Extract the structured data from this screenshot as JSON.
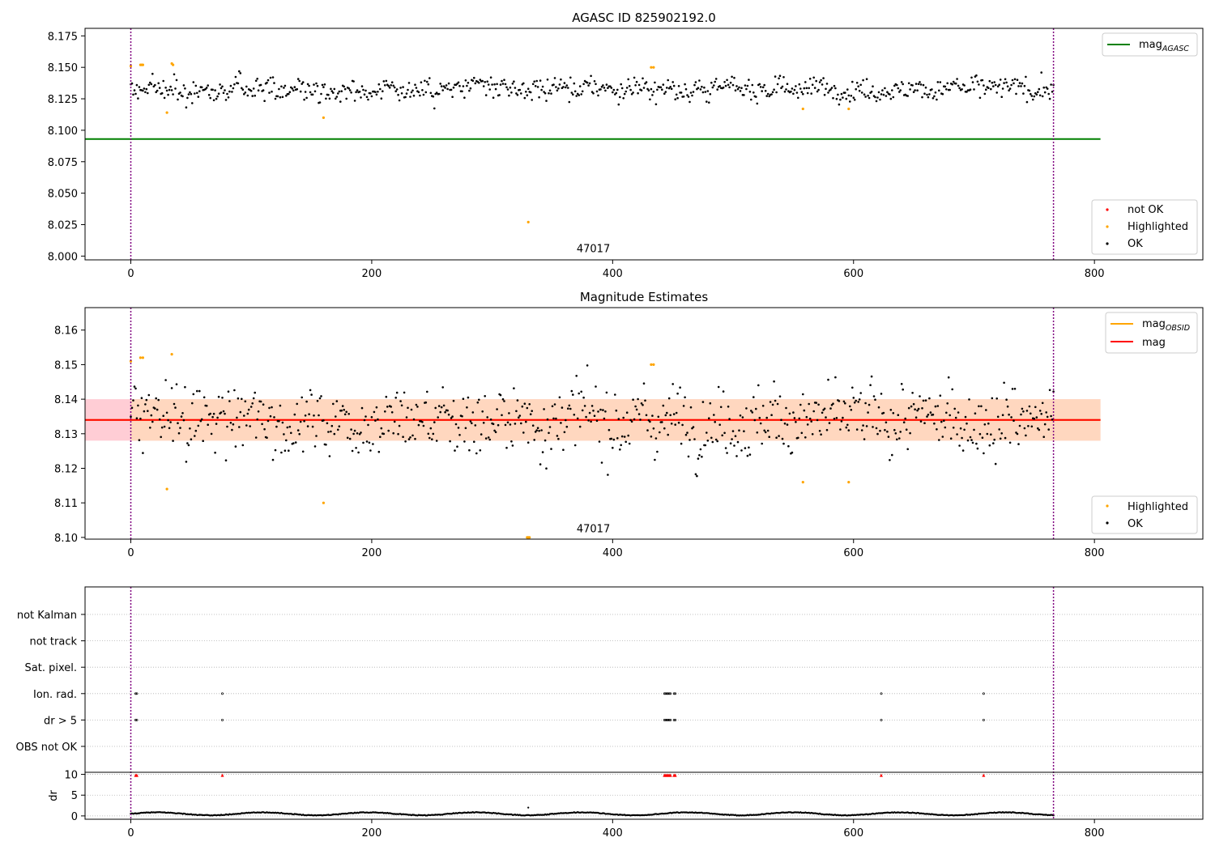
{
  "colors": {
    "agasc_line": "#008000",
    "mag_line": "#ff0000",
    "mag_obsid": "#ffa500",
    "ok": "#000000",
    "highlighted": "#ffa500",
    "not_ok": "#ff0000",
    "obs_line": "#800080",
    "band_outer": "#ffc0cb",
    "band_inner": "#ffdab9",
    "grid": "#b0b0b0"
  },
  "chart_data": [
    {
      "type": "scatter",
      "title": "AGASC ID 825902192.0",
      "xlim": [
        -38,
        890
      ],
      "ylim": [
        7.997,
        8.181
      ],
      "xticks": [
        "0",
        "200",
        "400",
        "600",
        "800"
      ],
      "yticks": [
        "8.000",
        "8.025",
        "8.050",
        "8.075",
        "8.100",
        "8.125",
        "8.150",
        "8.175"
      ],
      "annotation": {
        "text": "47017",
        "x": 384,
        "y": 8.003
      },
      "obs_boundaries": [
        0,
        766
      ],
      "legend_upper": [
        {
          "label": "mag",
          "sub": "AGASC",
          "kind": "line",
          "color": "#008000"
        }
      ],
      "legend_lower": [
        {
          "label": "not OK",
          "kind": "marker",
          "color": "#ff0000"
        },
        {
          "label": "Highlighted",
          "kind": "marker",
          "color": "#ffa500"
        },
        {
          "label": "OK",
          "kind": "marker",
          "color": "#000000"
        }
      ],
      "lines": [
        {
          "name": "mag_AGASC",
          "y": 8.093,
          "x_range": [
            -38,
            805
          ],
          "color": "#008000"
        }
      ],
      "series": [
        {
          "name": "OK",
          "color": "#000000",
          "x_range": [
            0,
            766
          ],
          "center": 8.133,
          "spread": 0.007
        },
        {
          "name": "Highlighted",
          "color": "#ffa500",
          "x": [
            0,
            8,
            9,
            10,
            30,
            34,
            35,
            160,
            330,
            432,
            434,
            558,
            596
          ],
          "y": [
            8.151,
            8.152,
            8.152,
            8.152,
            8.114,
            8.153,
            8.152,
            8.11,
            8.027,
            8.15,
            8.15,
            8.117,
            8.117
          ]
        }
      ]
    },
    {
      "type": "scatter",
      "title": "Magnitude Estimates",
      "xlim": [
        -38,
        890
      ],
      "ylim": [
        8.0995,
        8.1665
      ],
      "xticks": [
        "0",
        "200",
        "400",
        "600",
        "800"
      ],
      "yticks": [
        "8.10",
        "8.11",
        "8.12",
        "8.13",
        "8.14",
        "8.15",
        "8.16"
      ],
      "annotation": {
        "text": "47017",
        "x": 384,
        "y": 8.1015
      },
      "obs_boundaries": [
        0,
        766
      ],
      "legend_upper": [
        {
          "label": "mag",
          "sub": "OBSID",
          "kind": "line",
          "color": "#ffa500"
        },
        {
          "label": "mag",
          "kind": "line",
          "color": "#ff0000"
        }
      ],
      "legend_lower": [
        {
          "label": "Highlighted",
          "kind": "marker",
          "color": "#ffa500"
        },
        {
          "label": "OK",
          "kind": "marker",
          "color": "#000000"
        }
      ],
      "lines": [
        {
          "name": "mag",
          "y": 8.134,
          "x_range": [
            -38,
            805
          ],
          "color": "#ff0000"
        },
        {
          "name": "mag_OBSID",
          "y": 8.134,
          "x_range": [
            -38,
            805
          ],
          "color": "#ffa500"
        }
      ],
      "bands": [
        {
          "y0": 8.128,
          "y1": 8.14,
          "x_range": [
            -38,
            805
          ],
          "color": "#ffc0cb"
        },
        {
          "y0": 8.128,
          "y1": 8.14,
          "x_range": [
            0,
            805
          ],
          "color": "#ffdab9"
        }
      ],
      "series": [
        {
          "name": "OK",
          "color": "#000000",
          "x_range": [
            0,
            766
          ],
          "center": 8.134,
          "spread": 0.0075
        },
        {
          "name": "Highlighted",
          "color": "#ffa500",
          "x": [
            0,
            8,
            10,
            30,
            34,
            160,
            329,
            330,
            331,
            432,
            434,
            558,
            596
          ],
          "y": [
            8.151,
            8.152,
            8.152,
            8.114,
            8.153,
            8.11,
            8.1,
            8.1,
            8.1,
            8.15,
            8.15,
            8.116,
            8.116
          ]
        }
      ]
    },
    {
      "type": "scatter",
      "title": "",
      "xlim": [
        -38,
        890
      ],
      "xticks": [
        "0",
        "200",
        "400",
        "600",
        "800"
      ],
      "obs_boundaries": [
        0,
        766
      ],
      "flag_categories": [
        "not Kalman",
        "not track",
        "Sat. pixel.",
        "Ion. rad.",
        "dr > 5",
        "OBS not OK"
      ],
      "flags": [
        {
          "category": "Ion. rad.",
          "x": [
            4,
            5,
            76,
            443,
            444,
            445,
            446,
            447,
            448,
            451,
            452,
            623,
            708
          ]
        },
        {
          "category": "dr > 5",
          "x": [
            4,
            5,
            76,
            443,
            444,
            445,
            446,
            447,
            448,
            451,
            452,
            623,
            708
          ]
        }
      ],
      "dr_ylabel": "dr",
      "dr_yticks": [
        "0",
        "5",
        "10"
      ],
      "dr_ylim": [
        -0.8,
        10.5
      ],
      "dr_series": {
        "name": "dr",
        "color": "#000000",
        "x_range": [
          0,
          766
        ],
        "center": 0.5,
        "spread": 0.35
      },
      "dr_outliers": {
        "color": "#ff0000",
        "x": [
          4,
          5,
          76,
          443,
          444,
          445,
          446,
          447,
          448,
          451,
          452,
          623,
          708
        ],
        "y": [
          9.8,
          9.8,
          9.8,
          9.8,
          9.8,
          9.8,
          9.8,
          9.8,
          9.8,
          9.8,
          9.8,
          9.8,
          9.8
        ]
      },
      "dr_single": {
        "x": [
          330
        ],
        "y": [
          2.0
        ]
      }
    }
  ]
}
